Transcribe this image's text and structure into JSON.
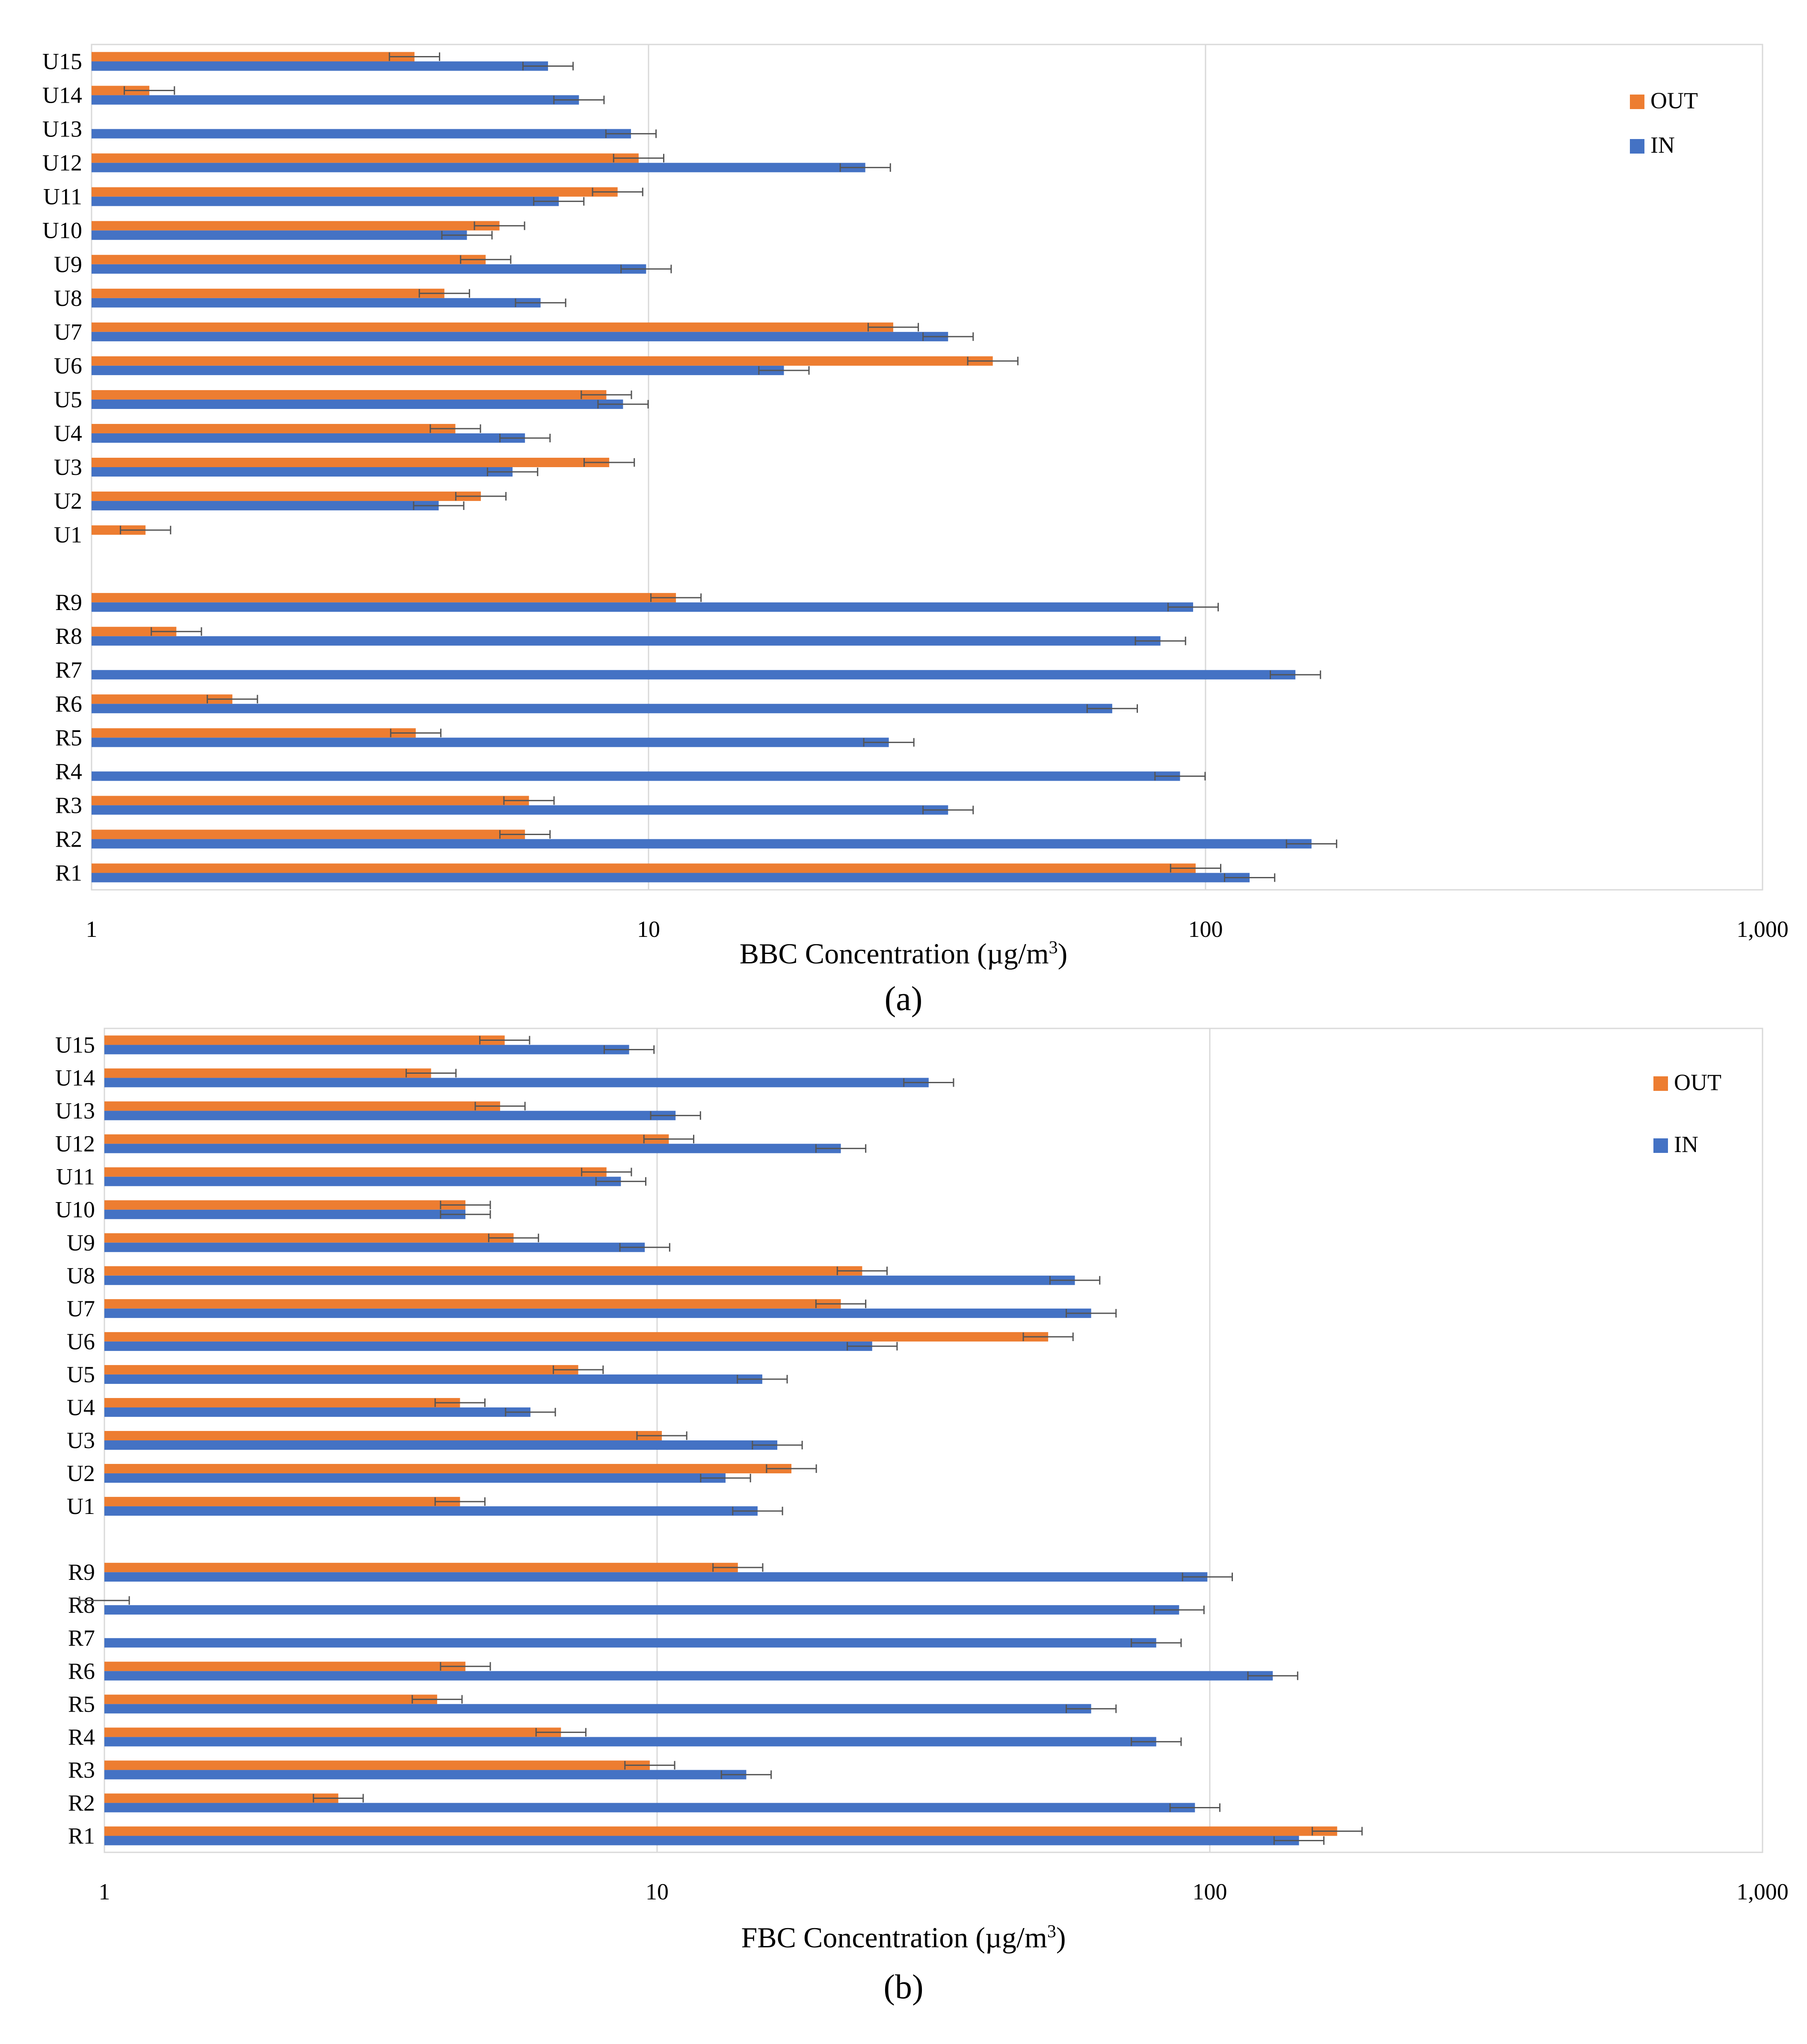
{
  "chart_data": [
    {
      "type": "bar",
      "orientation": "horizontal",
      "x_scale": "log",
      "xlim": [
        1,
        1000
      ],
      "x_ticks": [
        "1",
        "10",
        "100",
        "1,000"
      ],
      "xlabel": "BBC  Concentration (µg/m³)",
      "xlabel_main": "BBC  Concentration (µg/m",
      "xlabel_sup": "3",
      "xlabel_end": ")",
      "caption": "(a)",
      "legend": [
        "OUT",
        "IN"
      ],
      "legend_position": "top-right",
      "colors": {
        "OUT": "#ED7D31",
        "IN": "#4472C4"
      },
      "categories": [
        "U15",
        "U14",
        "U13",
        "U12",
        "U11",
        "U10",
        "U9",
        "U8",
        "U7",
        "U6",
        "U5",
        "U4",
        "U3",
        "U2",
        "U1",
        "",
        "R9",
        "R8",
        "R7",
        "R6",
        "R5",
        "R4",
        "R3",
        "R2",
        "R1"
      ],
      "series": [
        {
          "name": "OUT",
          "values": [
            3.8,
            1.27,
            null,
            9.6,
            8.8,
            5.4,
            5.1,
            4.3,
            27.5,
            41.5,
            8.4,
            4.5,
            8.5,
            5.0,
            1.25,
            null,
            11.2,
            1.42,
            null,
            1.79,
            3.82,
            null,
            6.1,
            6.0,
            96
          ]
        },
        {
          "name": "IN",
          "values": [
            6.6,
            7.5,
            9.3,
            24.5,
            6.9,
            4.72,
            9.9,
            6.4,
            34.5,
            17.5,
            9.0,
            6.0,
            5.7,
            4.2,
            null,
            null,
            95,
            83,
            145,
            68,
            27,
            90,
            34.5,
            155,
            120
          ]
        }
      ]
    },
    {
      "type": "bar",
      "orientation": "horizontal",
      "x_scale": "log",
      "xlim": [
        1,
        1000
      ],
      "x_ticks": [
        "1",
        "10",
        "100",
        "1,000"
      ],
      "xlabel": "FBC  Concentration (µg/m³)",
      "xlabel_main": "FBC  Concentration (µg/m",
      "xlabel_sup": "3",
      "xlabel_end": ")",
      "caption": "(b)",
      "legend": [
        "OUT",
        "IN"
      ],
      "legend_position": "top-right",
      "colors": {
        "OUT": "#ED7D31",
        "IN": "#4472C4"
      },
      "categories": [
        "U15",
        "U14",
        "U13",
        "U12",
        "U11",
        "U10",
        "U9",
        "U8",
        "U7",
        "U6",
        "U5",
        "U4",
        "U3",
        "U2",
        "U1",
        "",
        "R9",
        "R8",
        "R7",
        "R6",
        "R5",
        "R4",
        "R3",
        "R2",
        "R1"
      ],
      "series": [
        {
          "name": "OUT",
          "values": [
            5.3,
            3.9,
            5.2,
            10.5,
            8.1,
            4.5,
            5.5,
            23.5,
            21.5,
            51,
            7.2,
            4.4,
            10.2,
            17.5,
            4.4,
            null,
            14,
            1.0,
            null,
            4.5,
            4.0,
            6.7,
            9.7,
            2.65,
            170
          ]
        },
        {
          "name": "IN",
          "values": [
            8.9,
            31,
            10.8,
            21.5,
            8.6,
            4.5,
            9.5,
            57,
            61,
            24.5,
            15.5,
            5.9,
            16.5,
            13.3,
            15.2,
            null,
            99,
            88,
            80,
            130,
            61,
            80,
            14.5,
            94,
            145
          ]
        }
      ]
    }
  ]
}
